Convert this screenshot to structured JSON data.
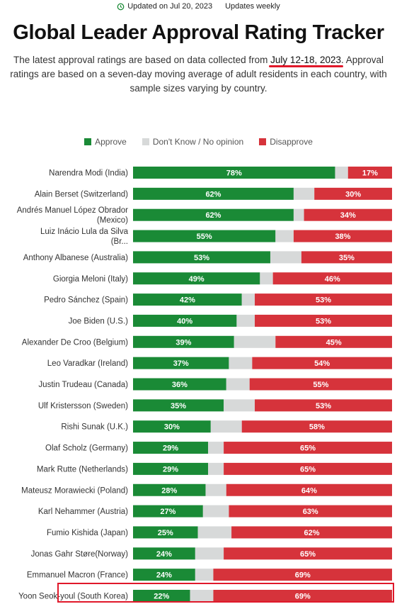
{
  "header": {
    "updated_text": "Updated on Jul 20, 2023",
    "frequency_text": "Updates weekly"
  },
  "title": "Global Leader Approval Rating Tracker",
  "description": {
    "before": "The latest approval ratings are based on data collected from ",
    "dates": "July 12-18, 2023",
    "after": ". Approval ratings are based on a seven-day moving average of adult residents in each country, with sample sizes varying by country."
  },
  "legend": {
    "approve": "Approve",
    "dont_know": "Don't Know / No opinion",
    "disapprove": "Disapprove"
  },
  "colors": {
    "approve": "#1a8a36",
    "dont_know": "#d7d9d9",
    "disapprove": "#d6333b",
    "highlight": "#e0182a"
  },
  "chart_data": {
    "type": "bar",
    "orientation": "horizontal",
    "stacked": true,
    "xlim": [
      0,
      100
    ],
    "categories": [
      "Narendra Modi (India)",
      "Alain Berset (Switzerland)",
      "Andrés Manuel López Obrador (Mexico)",
      "Luiz Inácio Lula da Silva (Br...",
      "Anthony Albanese (Australia)",
      "Giorgia Meloni (Italy)",
      "Pedro Sánchez (Spain)",
      "Joe Biden (U.S.)",
      "Alexander De Croo (Belgium)",
      "Leo Varadkar (Ireland)",
      "Justin Trudeau (Canada)",
      "Ulf Kristersson (Sweden)",
      "Rishi Sunak (U.K.)",
      "Olaf Scholz (Germany)",
      "Mark Rutte (Netherlands)",
      "Mateusz Morawiecki (Poland)",
      "Karl Nehammer (Austria)",
      "Fumio Kishida (Japan)",
      "Jonas Gahr Støre(Norway)",
      "Emmanuel Macron (France)",
      "Yoon Seok-youl (South Korea)"
    ],
    "series": [
      {
        "name": "Approve",
        "values": [
          78,
          62,
          62,
          55,
          53,
          49,
          42,
          40,
          39,
          37,
          36,
          35,
          30,
          29,
          29,
          28,
          27,
          25,
          24,
          24,
          22
        ]
      },
      {
        "name": "Don't Know / No opinion",
        "values": [
          5,
          8,
          4,
          7,
          12,
          5,
          5,
          7,
          16,
          9,
          9,
          12,
          12,
          6,
          6,
          8,
          10,
          13,
          11,
          7,
          9
        ]
      },
      {
        "name": "Disapprove",
        "values": [
          17,
          30,
          34,
          38,
          35,
          46,
          53,
          53,
          45,
          54,
          55,
          53,
          58,
          65,
          65,
          64,
          63,
          62,
          65,
          69,
          69
        ]
      }
    ],
    "highlighted_category": "Yoon Seok-youl (South Korea)"
  }
}
